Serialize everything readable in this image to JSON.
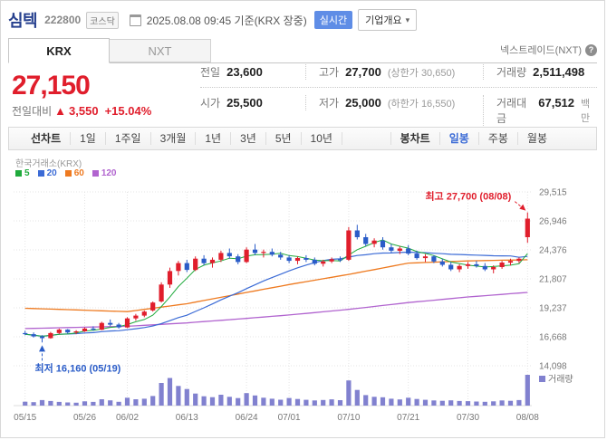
{
  "header": {
    "stock_name": "심텍",
    "stock_code": "222800",
    "market_badge": "코스닥",
    "quote_time": "2025.08.08 09:45 기준(KRX 장중)",
    "realtime_badge": "실시간",
    "company_overview_button": "기업개요"
  },
  "tabs": {
    "krx": "KRX",
    "nxt": "NXT",
    "nxt_info": "넥스트레이드(NXT)"
  },
  "price": {
    "current": "27,150",
    "change_label": "전일대비",
    "change_arrow": "▲",
    "change_value": "3,550",
    "change_percent": "+15.04%"
  },
  "summary": {
    "prev": {
      "label": "전일",
      "value": "23,600"
    },
    "high": {
      "label": "고가",
      "value": "27,700",
      "sub": "(상한가 30,650)"
    },
    "volume": {
      "label": "거래량",
      "value": "2,511,498"
    },
    "open": {
      "label": "시가",
      "value": "25,500"
    },
    "low": {
      "label": "저가",
      "value": "25,000",
      "sub": "(하한가 16,550)"
    },
    "amount": {
      "label": "거래대금",
      "value": "67,512",
      "unit": "백만"
    }
  },
  "toolbar": {
    "line_chart_label": "선차트",
    "ranges": [
      "1일",
      "1주일",
      "3개월",
      "1년",
      "3년",
      "5년",
      "10년"
    ],
    "candle_chart_label": "봉차트",
    "periods": [
      "일봉",
      "주봉",
      "월봉"
    ],
    "active_period": "일봉"
  },
  "chart_data": {
    "type": "candlestick",
    "title": "한국거래소(KRX)",
    "legend": [
      {
        "label": "5",
        "color": "#1faa3c"
      },
      {
        "label": "20",
        "color": "#3b6bd6"
      },
      {
        "label": "60",
        "color": "#ee7a20"
      },
      {
        "label": "120",
        "color": "#b164cf"
      }
    ],
    "y_ticks": [
      "29,515",
      "26,946",
      "24,376",
      "21,807",
      "19,237",
      "16,668",
      "14,098"
    ],
    "y_max_value": 29515,
    "y_min_value": 14098,
    "x_tick_labels": [
      "05/15",
      "05/26",
      "06/02",
      "06/13",
      "06/24",
      "07/01",
      "07/10",
      "07/21",
      "07/30",
      "08/08"
    ],
    "x_tick_indices": [
      0,
      7,
      12,
      19,
      26,
      31,
      38,
      45,
      52,
      59
    ],
    "annotations": {
      "high": {
        "text": "최고 27,700 (08/08)",
        "value": 27700,
        "index": 59,
        "color": "#e01e2c"
      },
      "low": {
        "text": "최저 16,160 (05/19)",
        "value": 16160,
        "index": 2,
        "color": "#2a5cc8"
      }
    },
    "volume_label": "거래량",
    "up_color": "#e01e2c",
    "down_color": "#2a5cc8",
    "volume_color": "#8181cf",
    "candles": [
      [
        17000,
        17200,
        16800,
        16900,
        320000
      ],
      [
        16900,
        17050,
        16600,
        16700,
        280000
      ],
      [
        16700,
        16800,
        16160,
        16550,
        450000
      ],
      [
        16550,
        17100,
        16500,
        17000,
        380000
      ],
      [
        17000,
        17400,
        16900,
        17300,
        300000
      ],
      [
        17300,
        17350,
        16950,
        17050,
        260000
      ],
      [
        17050,
        17250,
        16900,
        17150,
        240000
      ],
      [
        17150,
        17500,
        17100,
        17400,
        350000
      ],
      [
        17400,
        17600,
        17200,
        17300,
        300000
      ],
      [
        17300,
        18000,
        17250,
        17900,
        520000
      ],
      [
        17900,
        18200,
        17600,
        17750,
        430000
      ],
      [
        17750,
        17900,
        17400,
        17500,
        310000
      ],
      [
        17500,
        18400,
        17450,
        18300,
        640000
      ],
      [
        18300,
        18700,
        18100,
        18550,
        520000
      ],
      [
        18550,
        19000,
        18400,
        18900,
        560000
      ],
      [
        19000,
        19800,
        18900,
        19700,
        780000
      ],
      [
        19800,
        21500,
        19700,
        21300,
        1850000
      ],
      [
        21300,
        22800,
        21000,
        22500,
        2250000
      ],
      [
        22500,
        23400,
        22100,
        23200,
        1600000
      ],
      [
        23200,
        23500,
        22400,
        22600,
        1350000
      ],
      [
        22600,
        23800,
        22500,
        23600,
        980000
      ],
      [
        23600,
        23900,
        23000,
        23200,
        760000
      ],
      [
        23200,
        23700,
        22800,
        23500,
        690000
      ],
      [
        23500,
        24300,
        23300,
        24100,
        890000
      ],
      [
        24100,
        24500,
        23600,
        23800,
        720000
      ],
      [
        23800,
        24000,
        23100,
        23300,
        610000
      ],
      [
        23300,
        24600,
        23200,
        24400,
        1020000
      ],
      [
        24400,
        24900,
        23900,
        24100,
        830000
      ],
      [
        24100,
        24400,
        23700,
        24200,
        640000
      ],
      [
        24200,
        24500,
        23800,
        23950,
        560000
      ],
      [
        23950,
        24200,
        23500,
        23700,
        480000
      ],
      [
        23700,
        23900,
        23200,
        23400,
        620000
      ],
      [
        23400,
        23800,
        23100,
        23650,
        540000
      ],
      [
        23650,
        23900,
        23300,
        23500,
        470000
      ],
      [
        23500,
        23700,
        23000,
        23150,
        420000
      ],
      [
        23150,
        23500,
        22900,
        23350,
        460000
      ],
      [
        23350,
        23700,
        23200,
        23550,
        510000
      ],
      [
        23550,
        23800,
        23300,
        23450,
        440000
      ],
      [
        23500,
        26400,
        23400,
        26100,
        2050000
      ],
      [
        26100,
        26600,
        25300,
        25500,
        1280000
      ],
      [
        25500,
        25800,
        24700,
        24900,
        860000
      ],
      [
        24900,
        25400,
        24600,
        25200,
        720000
      ],
      [
        25200,
        25500,
        24400,
        24600,
        680000
      ],
      [
        24600,
        24900,
        24100,
        24300,
        560000
      ],
      [
        24300,
        24700,
        24000,
        24500,
        500000
      ],
      [
        24500,
        24800,
        23900,
        24050,
        640000
      ],
      [
        24050,
        24300,
        23500,
        23650,
        540000
      ],
      [
        23650,
        24000,
        23300,
        23800,
        470000
      ],
      [
        23800,
        23900,
        23200,
        23350,
        420000
      ],
      [
        23350,
        23600,
        22900,
        23050,
        390000
      ],
      [
        23050,
        23300,
        22500,
        22650,
        430000
      ],
      [
        22650,
        23100,
        22400,
        22950,
        380000
      ],
      [
        22950,
        23300,
        22700,
        23100,
        360000
      ],
      [
        23100,
        23400,
        22800,
        22950,
        330000
      ],
      [
        22950,
        23200,
        22500,
        22650,
        310000
      ],
      [
        22650,
        23000,
        22300,
        22850,
        350000
      ],
      [
        22850,
        23400,
        22700,
        23250,
        420000
      ],
      [
        23250,
        23600,
        23000,
        23400,
        390000
      ],
      [
        23400,
        23700,
        23200,
        23600,
        450000
      ],
      [
        25500,
        27700,
        25000,
        27150,
        2511498
      ]
    ],
    "ma60_anchors": [
      [
        0,
        19200
      ],
      [
        12,
        18900
      ],
      [
        19,
        19600
      ],
      [
        26,
        20600
      ],
      [
        31,
        21300
      ],
      [
        38,
        22200
      ],
      [
        45,
        23200
      ],
      [
        52,
        23400
      ],
      [
        59,
        23500
      ]
    ],
    "ma120_anchors": [
      [
        0,
        17400
      ],
      [
        12,
        17600
      ],
      [
        19,
        17900
      ],
      [
        26,
        18300
      ],
      [
        31,
        18600
      ],
      [
        38,
        19100
      ],
      [
        45,
        19700
      ],
      [
        52,
        20200
      ],
      [
        59,
        20600
      ]
    ]
  }
}
